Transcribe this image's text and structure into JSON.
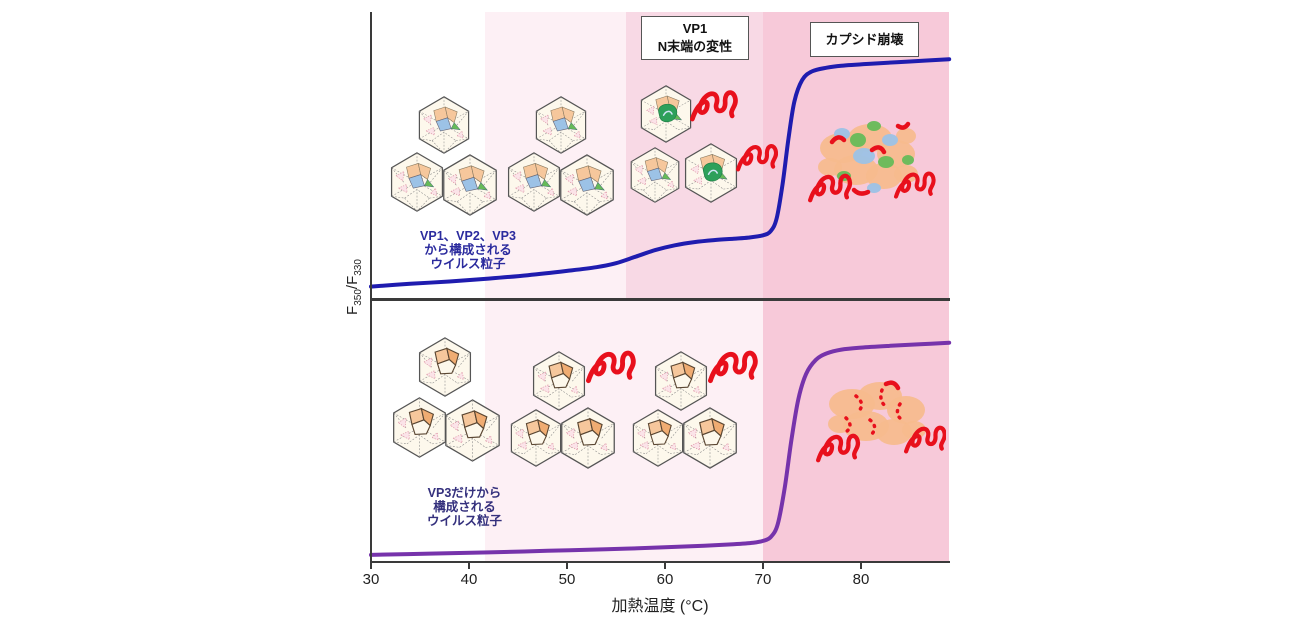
{
  "axis": {
    "x_label": "加熱温度 (°C)",
    "x_ticks": [
      "30",
      "40",
      "50",
      "60",
      "70",
      "80"
    ],
    "y_label": {
      "base1": "F",
      "sub1": "350",
      "base2": "/F",
      "sub2": "330"
    }
  },
  "annotations": {
    "vp1_box_lines": [
      "VP1",
      "N末端の変性"
    ],
    "capsid_box_label": "カプシド崩壊"
  },
  "panels": {
    "top": {
      "caption_lines": [
        "VP1、VP2、VP3",
        "から構成される",
        "ウイルス粒子"
      ]
    },
    "bottom": {
      "caption_lines": [
        "VP3だけから",
        "構成される",
        "ウイルス粒子"
      ]
    }
  },
  "colors": {
    "band_pale": "#fdf0f5",
    "band_mid": "#f8d9e5",
    "band_dark": "#f7c9d9",
    "curve_top": "#1f1caf",
    "curve_bottom": "#7633ab",
    "caption_top": "#2b2b9e",
    "caption_bottom": "#34307d",
    "capsid_cream": "#fdf8ec",
    "facet_peach": "#f6c79c",
    "facet_orange": "#f0ac72",
    "facet_blue": "#9cc2e6",
    "facet_green": "#66bb58",
    "denatured_green": "#2da05a",
    "squiggle_red": "#e8101c",
    "blob_peach": "#f6bb8d",
    "axis_color": "#3a3a3a"
  },
  "chart_data": [
    {
      "type": "line",
      "panel": "top",
      "xlabel": "加熱温度 (°C)",
      "ylabel": "F350/F330",
      "x_range": [
        30,
        89
      ],
      "grid": false,
      "regions": [
        {
          "from": 30,
          "to": 41.6,
          "color": "#ffffff"
        },
        {
          "from": 41.6,
          "to": 56,
          "color": "#fdf0f5"
        },
        {
          "from": 56,
          "to": 70,
          "color": "#f8d9e5"
        },
        {
          "from": 70,
          "to": 89,
          "color": "#f7c9d9"
        }
      ],
      "series": [
        {
          "name": "VP1、VP2、VP3から構成されるウイルス粒子",
          "color": "#1f1caf",
          "points": [
            [
              30,
              0.04
            ],
            [
              34,
              0.05
            ],
            [
              38,
              0.058
            ],
            [
              42,
              0.068
            ],
            [
              46,
              0.08
            ],
            [
              50,
              0.095
            ],
            [
              53,
              0.108
            ],
            [
              55,
              0.122
            ],
            [
              57,
              0.145
            ],
            [
              59,
              0.168
            ],
            [
              61,
              0.185
            ],
            [
              63,
              0.196
            ],
            [
              65,
              0.203
            ],
            [
              67,
              0.208
            ],
            [
              68.5,
              0.212
            ],
            [
              70,
              0.22
            ],
            [
              70.8,
              0.235
            ],
            [
              71.4,
              0.28
            ],
            [
              72,
              0.4
            ],
            [
              72.6,
              0.56
            ],
            [
              73.2,
              0.69
            ],
            [
              74,
              0.765
            ],
            [
              75,
              0.795
            ],
            [
              76.5,
              0.808
            ],
            [
              78,
              0.815
            ],
            [
              81,
              0.822
            ],
            [
              85,
              0.83
            ],
            [
              89,
              0.838
            ]
          ]
        }
      ]
    },
    {
      "type": "line",
      "panel": "bottom",
      "xlabel": "加熱温度 (°C)",
      "ylabel": "F350/F330",
      "x_range": [
        30,
        89
      ],
      "grid": false,
      "regions": [
        {
          "from": 30,
          "to": 41.6,
          "color": "#ffffff"
        },
        {
          "from": 41.6,
          "to": 70,
          "color": "#fdf0f5"
        },
        {
          "from": 70,
          "to": 89,
          "color": "#f7c9d9"
        }
      ],
      "series": [
        {
          "name": "VP3だけから構成されるウイルス粒子",
          "color": "#7633ab",
          "points": [
            [
              30,
              0.02
            ],
            [
              36,
              0.025
            ],
            [
              42,
              0.03
            ],
            [
              48,
              0.036
            ],
            [
              54,
              0.042
            ],
            [
              60,
              0.05
            ],
            [
              64,
              0.056
            ],
            [
              67,
              0.062
            ],
            [
              69,
              0.068
            ],
            [
              70,
              0.075
            ],
            [
              70.8,
              0.09
            ],
            [
              71.5,
              0.14
            ],
            [
              72.2,
              0.28
            ],
            [
              72.9,
              0.47
            ],
            [
              73.6,
              0.63
            ],
            [
              74.4,
              0.73
            ],
            [
              75.4,
              0.785
            ],
            [
              76.5,
              0.81
            ],
            [
              78,
              0.825
            ],
            [
              80,
              0.833
            ],
            [
              83,
              0.84
            ],
            [
              86,
              0.846
            ],
            [
              89,
              0.852
            ]
          ]
        }
      ]
    }
  ]
}
